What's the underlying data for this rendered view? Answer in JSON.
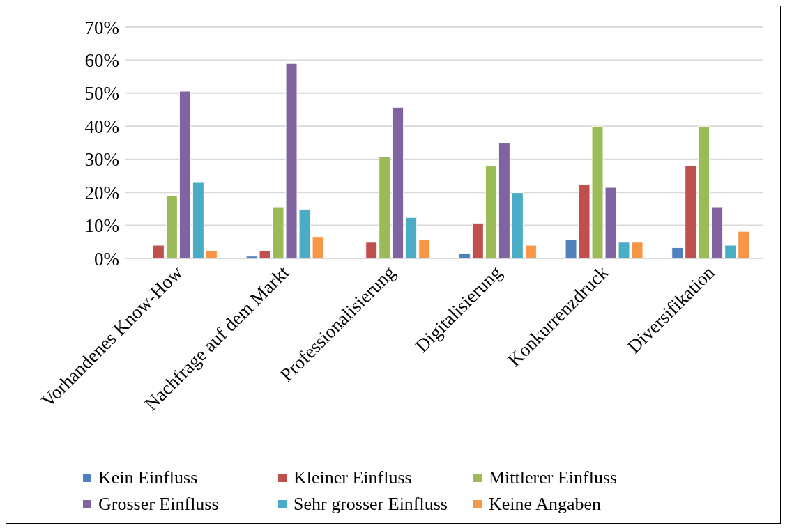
{
  "chart_data": {
    "type": "bar",
    "categories": [
      "Vorhandenes Know-How",
      "Nachfrage auf dem Markt",
      "Professionalisierung",
      "Digitalisierung",
      "Konkurrenzdruck",
      "Diversifikation"
    ],
    "series": [
      {
        "name": "Kein Einfluss",
        "color": "#4f81bd",
        "values": [
          0,
          0.7,
          0,
          1.6,
          5.8,
          3.3
        ]
      },
      {
        "name": "Kleiner Einfluss",
        "color": "#c0504d",
        "values": [
          4.0,
          2.4,
          4.9,
          10.7,
          22.4,
          28.1
        ]
      },
      {
        "name": "Mittlerer Einfluss",
        "color": "#9bbb59",
        "values": [
          19.0,
          15.6,
          30.7,
          28.1,
          40,
          40
        ]
      },
      {
        "name": "Grosser Einfluss",
        "color": "#8064a2",
        "values": [
          50.6,
          59.0,
          45.7,
          34.9,
          21.5,
          15.6
        ]
      },
      {
        "name": "Sehr grosser Einfluss",
        "color": "#4bacc6",
        "values": [
          23.2,
          14.9,
          12.4,
          19.9,
          4.9,
          4.0
        ]
      },
      {
        "name": "Keine Angaben",
        "color": "#f79646",
        "values": [
          2.4,
          6.6,
          5.8,
          4.0,
          4.9,
          8.2
        ]
      }
    ],
    "ylim": [
      0,
      70
    ],
    "yticks": [
      {
        "value": 0,
        "label": "0%"
      },
      {
        "value": 10,
        "label": "10%"
      },
      {
        "value": 20,
        "label": "20%"
      },
      {
        "value": 30,
        "label": "30%"
      },
      {
        "value": 40,
        "label": "40%"
      },
      {
        "value": 50,
        "label": "50%"
      },
      {
        "value": 60,
        "label": "60%"
      },
      {
        "value": 70,
        "label": "70%"
      }
    ],
    "grid": "y",
    "legend": "bottom"
  }
}
